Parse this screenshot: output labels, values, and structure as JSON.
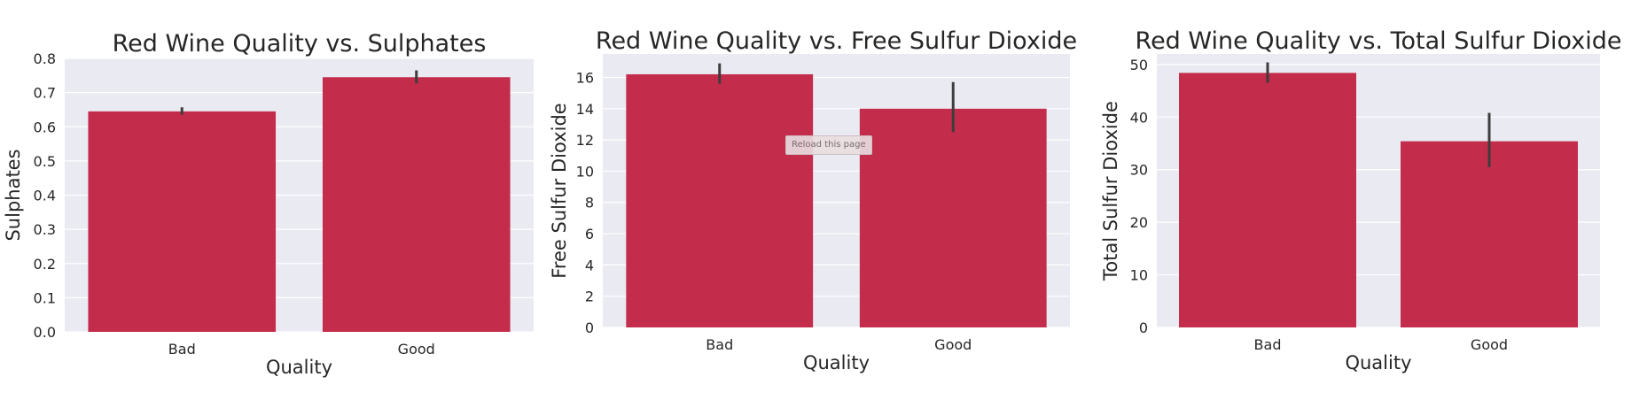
{
  "style": {
    "bar_color": "#c32c4b",
    "plot_bg": "#eaeaf2",
    "grid_color": "#ffffff",
    "errbar_color": "#3d3d3d",
    "text_color": "#262626"
  },
  "overlay": {
    "reload_label": "Reload this page"
  },
  "chart_data": [
    {
      "type": "bar",
      "title": "Red Wine Quality vs. Sulphates",
      "xlabel": "Quality",
      "ylabel": "Sulphates",
      "categories": [
        "Bad",
        "Good"
      ],
      "values": [
        0.645,
        0.745
      ],
      "error": [
        [
          0.635,
          0.657
        ],
        [
          0.727,
          0.765
        ]
      ],
      "ylim": [
        0,
        0.8
      ],
      "yticks": [
        0.0,
        0.1,
        0.2,
        0.3,
        0.4,
        0.5,
        0.6,
        0.7,
        0.8
      ],
      "ytick_labels": [
        "0.0",
        "0.1",
        "0.2",
        "0.3",
        "0.4",
        "0.5",
        "0.6",
        "0.7",
        "0.8"
      ],
      "grid": true
    },
    {
      "type": "bar",
      "title": "Red Wine Quality vs. Free Sulfur Dioxide",
      "xlabel": "Quality",
      "ylabel": "Free Sulfur Dioxide",
      "categories": [
        "Bad",
        "Good"
      ],
      "values": [
        16.2,
        14.0
      ],
      "error": [
        [
          15.6,
          16.9
        ],
        [
          12.5,
          15.7
        ]
      ],
      "ylim": [
        0,
        17.5
      ],
      "yticks": [
        0,
        2,
        4,
        6,
        8,
        10,
        12,
        14,
        16
      ],
      "ytick_labels": [
        "0",
        "2",
        "4",
        "6",
        "8",
        "10",
        "12",
        "14",
        "16"
      ],
      "grid": true
    },
    {
      "type": "bar",
      "title": "Red Wine Quality vs. Total Sulfur Dioxide",
      "xlabel": "Quality",
      "ylabel": "Total Sulfur Dioxide",
      "categories": [
        "Bad",
        "Good"
      ],
      "values": [
        48.4,
        35.4
      ],
      "error": [
        [
          46.5,
          50.4
        ],
        [
          30.5,
          40.8
        ]
      ],
      "ylim": [
        0,
        52
      ],
      "yticks": [
        0,
        10,
        20,
        30,
        40,
        50
      ],
      "ytick_labels": [
        "0",
        "10",
        "20",
        "30",
        "40",
        "50"
      ],
      "grid": true
    }
  ]
}
